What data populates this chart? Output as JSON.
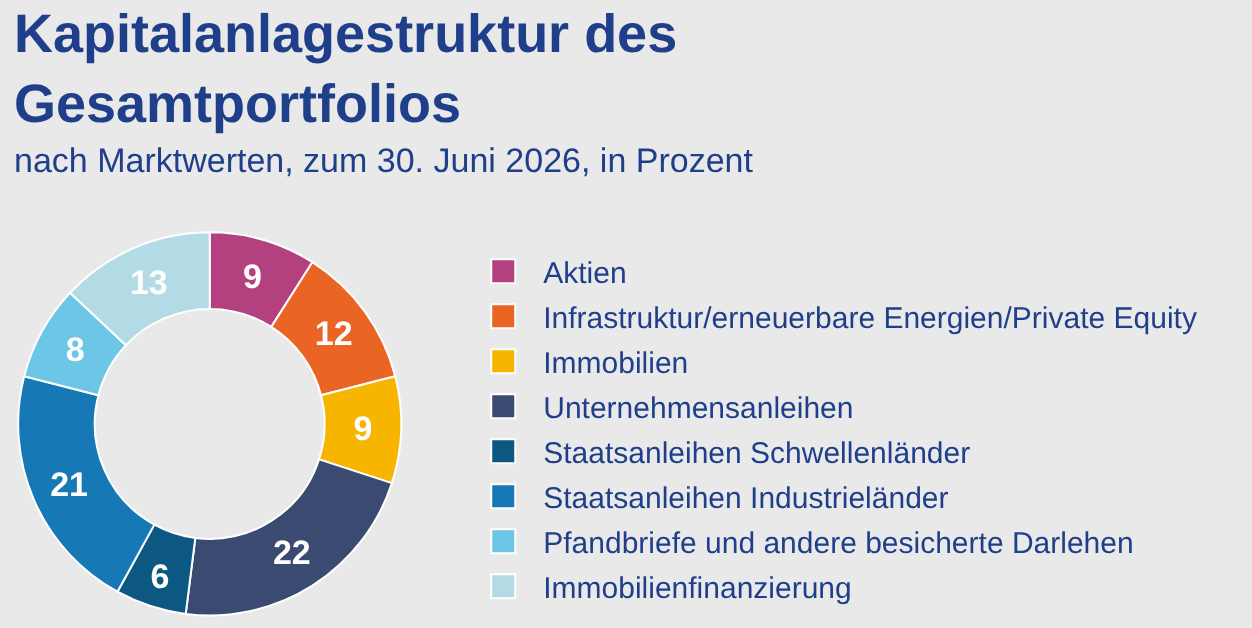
{
  "chart_data": {
    "type": "donut",
    "title": "Kapitalanlagestruktur des Gesamtportfolios",
    "subtitle": "nach Marktwerten, zum 30. Juni 2026, in Prozent",
    "categories": [
      "Aktien",
      "Infrastruktur/erneuerbare Energien/Private Equity",
      "Immobilien",
      "Unternehmensanleihen",
      "Staatsanleihen Schwellenländer",
      "Staatsanleihen Industrieländer",
      "Pfandbriefe und andere besicherte Darlehen",
      "Immobilienfinanzierung"
    ],
    "values": [
      9,
      12,
      9,
      22,
      6,
      21,
      8,
      13
    ],
    "colors": [
      "#b4417f",
      "#ea6424",
      "#f7b500",
      "#3b4a70",
      "#0d5883",
      "#1679b5",
      "#6cc6e6",
      "#b3dbe6"
    ],
    "data_labels": true,
    "legend": "right"
  }
}
